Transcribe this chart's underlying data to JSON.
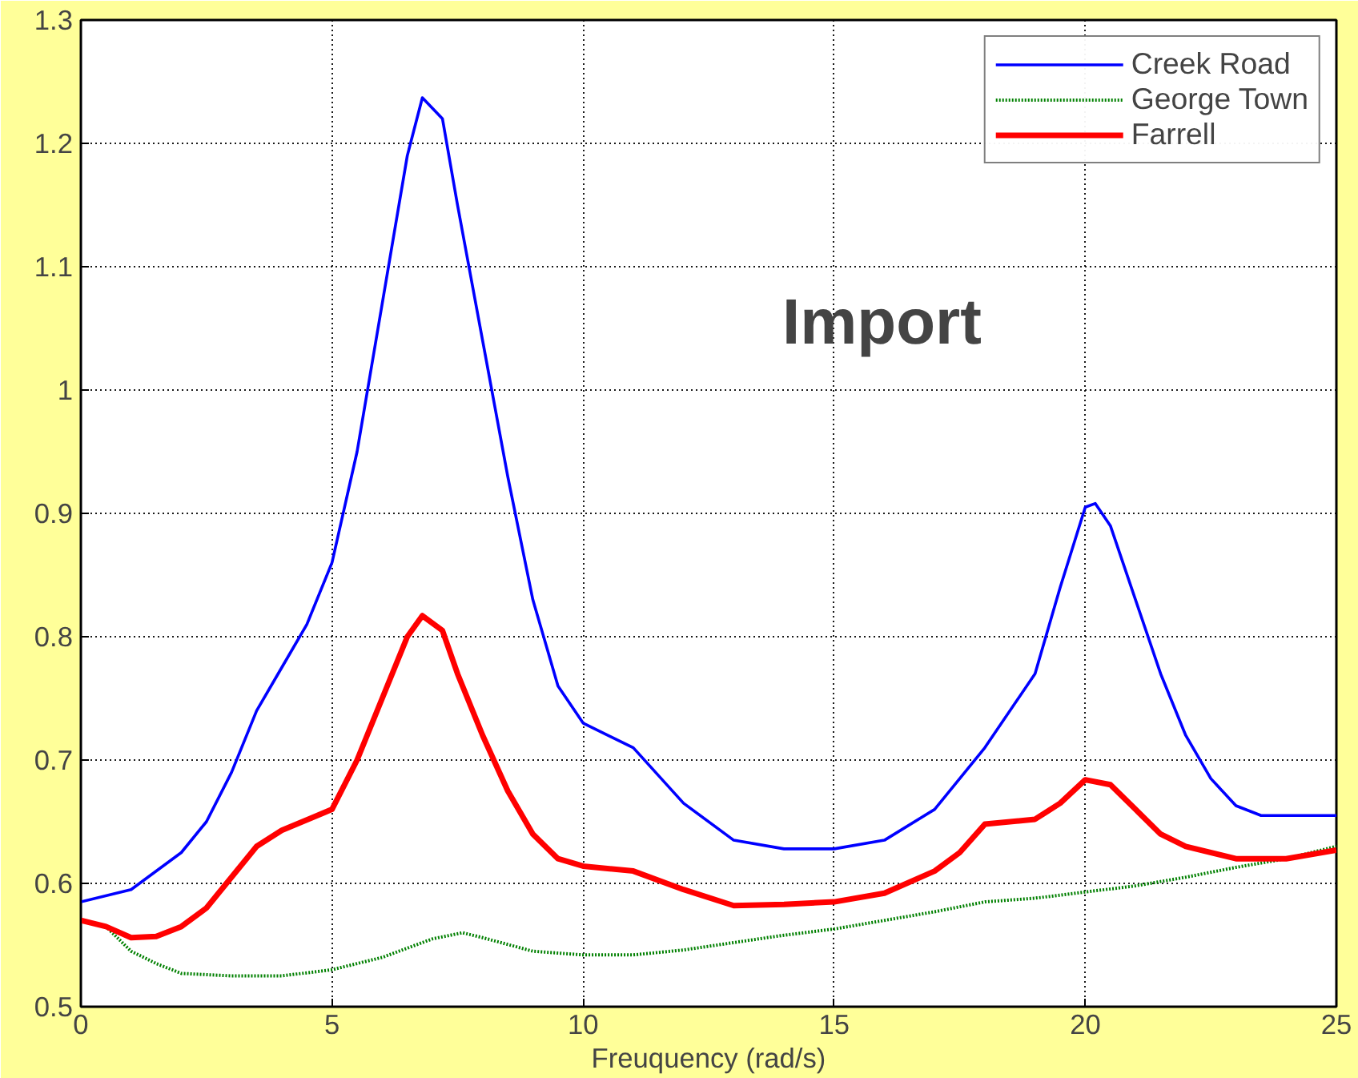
{
  "chart_data": {
    "type": "line",
    "xlabel": "Freuquency (rad/s)",
    "annotations": [
      "Import"
    ],
    "xlim": [
      0,
      25
    ],
    "xticks": [
      0,
      5,
      10,
      15,
      20,
      25
    ],
    "ylim": [
      0.5,
      1.3
    ],
    "yticks": [
      0.5,
      0.6,
      0.7,
      0.8,
      0.9,
      1,
      1.1,
      1.2,
      1.3
    ],
    "grid": true,
    "legend": "top right",
    "marker": "none",
    "series": [
      {
        "name": "Creek Road",
        "color": "#0000ff",
        "line_style": "solid",
        "x": [
          0,
          1,
          2,
          2.5,
          3,
          3.5,
          4,
          4.5,
          5,
          5.5,
          6,
          6.5,
          6.8,
          7.2,
          7.5,
          8,
          8.5,
          9,
          9.5,
          10,
          11,
          12,
          13,
          14,
          15,
          16,
          17,
          18,
          19,
          19.5,
          20,
          20.2,
          20.5,
          21,
          21.5,
          22,
          22.5,
          23,
          23.5,
          25
        ],
        "values": [
          0.585,
          0.595,
          0.625,
          0.65,
          0.69,
          0.74,
          0.775,
          0.81,
          0.86,
          0.95,
          1.07,
          1.19,
          1.237,
          1.22,
          1.15,
          1.04,
          0.93,
          0.83,
          0.76,
          0.73,
          0.71,
          0.665,
          0.635,
          0.628,
          0.628,
          0.635,
          0.66,
          0.71,
          0.77,
          0.84,
          0.905,
          0.908,
          0.89,
          0.83,
          0.77,
          0.72,
          0.685,
          0.663,
          0.655,
          0.655
        ]
      },
      {
        "name": "George Town",
        "color": "#008000",
        "line_style": "dotted",
        "x": [
          0,
          0.5,
          1,
          1.5,
          2,
          3,
          4,
          5,
          6,
          7,
          7.6,
          8,
          9,
          10,
          11,
          12,
          13,
          14,
          15,
          16,
          17,
          18,
          19,
          20,
          21,
          22,
          23,
          24,
          25
        ],
        "values": [
          0.57,
          0.565,
          0.545,
          0.535,
          0.527,
          0.525,
          0.525,
          0.53,
          0.54,
          0.555,
          0.56,
          0.556,
          0.545,
          0.542,
          0.542,
          0.546,
          0.552,
          0.558,
          0.563,
          0.57,
          0.577,
          0.585,
          0.588,
          0.593,
          0.598,
          0.605,
          0.613,
          0.62,
          0.63
        ]
      },
      {
        "name": "Farrell",
        "color": "#ff0000",
        "line_style": "solid",
        "x": [
          0,
          0.5,
          1,
          1.5,
          2,
          2.5,
          3,
          3.5,
          4,
          5,
          5.5,
          6,
          6.5,
          6.8,
          7.2,
          7.5,
          8,
          8.5,
          9,
          9.5,
          10,
          11,
          12,
          13,
          14,
          15,
          16,
          17,
          17.5,
          18,
          19,
          19.5,
          20,
          20.5,
          21,
          21.5,
          22,
          23,
          24,
          25
        ],
        "values": [
          0.57,
          0.565,
          0.556,
          0.557,
          0.565,
          0.58,
          0.605,
          0.63,
          0.643,
          0.66,
          0.7,
          0.75,
          0.8,
          0.817,
          0.805,
          0.77,
          0.72,
          0.675,
          0.64,
          0.62,
          0.614,
          0.61,
          0.595,
          0.582,
          0.583,
          0.585,
          0.592,
          0.61,
          0.625,
          0.648,
          0.652,
          0.665,
          0.684,
          0.68,
          0.66,
          0.64,
          0.63,
          0.62,
          0.62,
          0.627
        ]
      }
    ]
  }
}
